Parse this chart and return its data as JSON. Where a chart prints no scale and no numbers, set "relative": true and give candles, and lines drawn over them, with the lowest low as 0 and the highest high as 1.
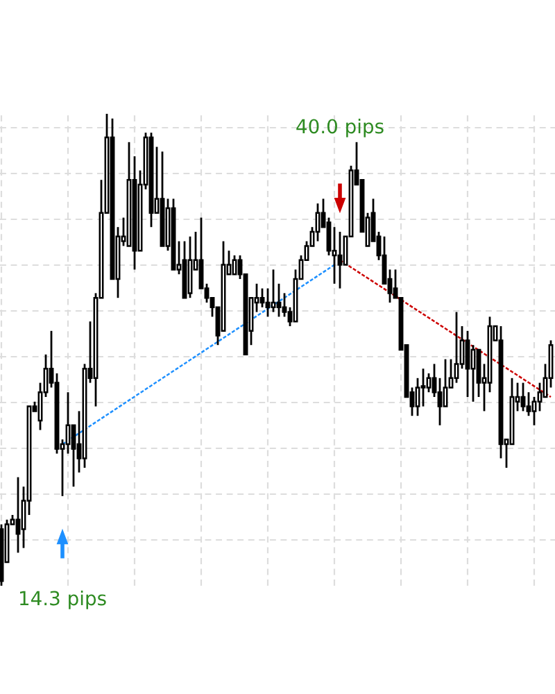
{
  "chart_data": {
    "type": "candlestick",
    "relative": true,
    "grid": true,
    "categories": [
      null,
      null,
      null,
      null,
      null,
      null,
      null,
      null,
      null,
      null,
      null,
      null,
      null,
      null,
      null,
      null,
      null,
      null,
      null,
      null,
      null,
      null,
      null,
      null,
      null,
      null,
      null,
      null,
      null,
      null,
      null,
      null,
      null,
      null,
      null,
      null,
      null,
      null,
      null,
      null,
      null,
      null,
      null,
      null,
      null,
      null,
      null,
      null,
      null,
      null,
      null,
      null,
      null,
      null,
      null,
      null,
      null,
      null,
      null,
      null,
      null,
      null,
      null,
      null,
      null,
      null,
      null,
      null,
      null,
      null,
      null,
      null,
      null,
      null,
      null,
      null,
      null,
      null,
      null,
      null,
      null,
      null,
      null,
      null,
      null,
      null,
      null,
      null,
      null,
      null,
      null,
      null,
      null,
      null,
      null,
      null,
      null,
      null,
      null,
      null
    ],
    "ohlc": [
      [
        0.12,
        0.13,
        0,
        0.01
      ],
      [
        0.05,
        0.14,
        0.05,
        0.13
      ],
      [
        0.13,
        0.15,
        0.13,
        0.14
      ],
      [
        0.14,
        0.23,
        0.07,
        0.11
      ],
      [
        0.12,
        0.21,
        0.08,
        0.18
      ],
      [
        0.18,
        0.38,
        0.15,
        0.38
      ],
      [
        0.38,
        0.39,
        0.37,
        0.37
      ],
      [
        0.35,
        0.43,
        0.33,
        0.41
      ],
      [
        0.41,
        0.49,
        0.4,
        0.46
      ],
      [
        0.46,
        0.54,
        0.42,
        0.43
      ],
      [
        0.43,
        0.45,
        0.28,
        0.29
      ],
      [
        0.29,
        0.31,
        0.19,
        0.3
      ],
      [
        0.3,
        0.41,
        0.28,
        0.34
      ],
      [
        0.34,
        0.34,
        0.21,
        0.29
      ],
      [
        0.3,
        0.37,
        0.24,
        0.27
      ],
      [
        0.27,
        0.47,
        0.25,
        0.46
      ],
      [
        0.46,
        0.56,
        0.43,
        0.44
      ],
      [
        0.44,
        0.62,
        0.38,
        0.61
      ],
      [
        0.61,
        0.86,
        0.61,
        0.79
      ],
      [
        0.79,
        1.0,
        0.79,
        0.95
      ],
      [
        0.95,
        0.99,
        0.65,
        0.65
      ],
      [
        0.65,
        0.76,
        0.61,
        0.74
      ],
      [
        0.73,
        0.78,
        0.72,
        0.74
      ],
      [
        0.72,
        0.94,
        0.72,
        0.86
      ],
      [
        0.86,
        0.91,
        0.67,
        0.71
      ],
      [
        0.71,
        0.88,
        0.71,
        0.85
      ],
      [
        0.85,
        0.96,
        0.84,
        0.95
      ],
      [
        0.95,
        0.96,
        0.76,
        0.79
      ],
      [
        0.79,
        0.93,
        0.79,
        0.82
      ],
      [
        0.82,
        0.92,
        0.72,
        0.72
      ],
      [
        0.72,
        0.82,
        0.71,
        0.8
      ],
      [
        0.8,
        0.82,
        0.67,
        0.67
      ],
      [
        0.67,
        0.73,
        0.66,
        0.68
      ],
      [
        0.69,
        0.73,
        0.61,
        0.61
      ],
      [
        0.62,
        0.74,
        0.61,
        0.69
      ],
      [
        0.67,
        0.75,
        0.67,
        0.69
      ],
      [
        0.69,
        0.78,
        0.63,
        0.63
      ],
      [
        0.63,
        0.64,
        0.6,
        0.61
      ],
      [
        0.61,
        0.61,
        0.57,
        0.59
      ],
      [
        0.59,
        0.59,
        0.51,
        0.53
      ],
      [
        0.54,
        0.73,
        0.54,
        0.68
      ],
      [
        0.66,
        0.71,
        0.66,
        0.68
      ],
      [
        0.66,
        0.7,
        0.66,
        0.69
      ],
      [
        0.69,
        0.7,
        0.65,
        0.66
      ],
      [
        0.66,
        0.66,
        0.49,
        0.49
      ],
      [
        0.54,
        0.61,
        0.51,
        0.61
      ],
      [
        0.6,
        0.64,
        0.58,
        0.61
      ],
      [
        0.61,
        0.63,
        0.59,
        0.6
      ],
      [
        0.6,
        0.63,
        0.57,
        0.59
      ],
      [
        0.59,
        0.67,
        0.58,
        0.6
      ],
      [
        0.6,
        0.64,
        0.57,
        0.59
      ],
      [
        0.59,
        0.62,
        0.57,
        0.58
      ],
      [
        0.58,
        0.59,
        0.55,
        0.56
      ],
      [
        0.56,
        0.67,
        0.56,
        0.65
      ],
      [
        0.65,
        0.7,
        0.65,
        0.69
      ],
      [
        0.69,
        0.73,
        0.69,
        0.72
      ],
      [
        0.72,
        0.76,
        0.72,
        0.75
      ],
      [
        0.75,
        0.81,
        0.73,
        0.79
      ],
      [
        0.79,
        0.82,
        0.76,
        0.76
      ],
      [
        0.77,
        0.78,
        0.7,
        0.71
      ],
      [
        0.7,
        0.76,
        0.64,
        0.71
      ],
      [
        0.7,
        0.75,
        0.63,
        0.68
      ],
      [
        0.68,
        0.74,
        0.68,
        0.74
      ],
      [
        0.74,
        0.89,
        0.74,
        0.88
      ],
      [
        0.88,
        0.94,
        0.85,
        0.85
      ],
      [
        0.86,
        0.86,
        0.75,
        0.75
      ],
      [
        0.72,
        0.79,
        0.72,
        0.78
      ],
      [
        0.79,
        0.82,
        0.73,
        0.73
      ],
      [
        0.74,
        0.75,
        0.69,
        0.7
      ],
      [
        0.7,
        0.74,
        0.64,
        0.64
      ],
      [
        0.65,
        0.67,
        0.6,
        0.62
      ],
      [
        0.63,
        0.67,
        0.61,
        0.61
      ],
      [
        0.61,
        0.61,
        0.5,
        0.5
      ],
      [
        0.51,
        0.51,
        0.4,
        0.4
      ],
      [
        0.41,
        0.42,
        0.36,
        0.38
      ],
      [
        0.38,
        0.44,
        0.36,
        0.42
      ],
      [
        0.42,
        0.46,
        0.38,
        0.42
      ],
      [
        0.42,
        0.45,
        0.41,
        0.44
      ],
      [
        0.44,
        0.47,
        0.4,
        0.41
      ],
      [
        0.41,
        0.44,
        0.34,
        0.38
      ],
      [
        0.38,
        0.48,
        0.38,
        0.42
      ],
      [
        0.42,
        0.48,
        0.42,
        0.44
      ],
      [
        0.44,
        0.58,
        0.43,
        0.47
      ],
      [
        0.47,
        0.55,
        0.46,
        0.52
      ],
      [
        0.52,
        0.54,
        0.4,
        0.46
      ],
      [
        0.46,
        0.51,
        0.39,
        0.5
      ],
      [
        0.5,
        0.5,
        0.4,
        0.43
      ],
      [
        0.43,
        0.47,
        0.37,
        0.44
      ],
      [
        0.43,
        0.57,
        0.41,
        0.55
      ],
      [
        0.52,
        0.55,
        0.52,
        0.55
      ],
      [
        0.52,
        0.55,
        0.27,
        0.3
      ],
      [
        0.3,
        0.31,
        0.25,
        0.31
      ],
      [
        0.3,
        0.44,
        0.3,
        0.4
      ],
      [
        0.39,
        0.43,
        0.37,
        0.4
      ],
      [
        0.4,
        0.43,
        0.37,
        0.38
      ],
      [
        0.38,
        0.41,
        0.36,
        0.37
      ],
      [
        0.37,
        0.4,
        0.34,
        0.39
      ],
      [
        0.39,
        0.43,
        0.37,
        0.41
      ],
      [
        0.4,
        0.47,
        0.4,
        0.44
      ],
      [
        0.44,
        0.52,
        0.42,
        0.51
      ]
    ],
    "series": [
      {
        "type": "line",
        "color": "#1e90ff",
        "line_style": "dashed",
        "values": [
          null,
          null,
          null,
          null,
          null,
          null,
          null,
          null,
          null,
          null,
          null,
          0.3,
          null,
          null,
          null,
          null,
          null,
          null,
          null,
          null,
          null,
          null,
          null,
          null,
          null,
          null,
          null,
          null,
          null,
          null,
          null,
          null,
          null,
          null,
          null,
          null,
          null,
          null,
          null,
          null,
          null,
          null,
          null,
          null,
          null,
          null,
          null,
          null,
          null,
          null,
          null,
          null,
          null,
          null,
          null,
          null,
          null,
          null,
          null,
          null,
          0.68,
          null,
          null,
          null,
          null,
          null,
          null,
          null,
          null,
          null,
          null,
          null,
          null,
          null,
          null,
          null,
          null,
          null,
          null,
          null,
          null,
          null,
          null,
          null,
          null,
          null,
          null,
          null,
          null,
          null,
          null,
          null,
          null,
          null,
          null,
          null,
          null,
          null,
          null,
          null
        ]
      },
      {
        "type": "line",
        "color": "#cc0000",
        "line_style": "dashed",
        "values": [
          null,
          null,
          null,
          null,
          null,
          null,
          null,
          null,
          null,
          null,
          null,
          null,
          null,
          null,
          null,
          null,
          null,
          null,
          null,
          null,
          null,
          null,
          null,
          null,
          null,
          null,
          null,
          null,
          null,
          null,
          null,
          null,
          null,
          null,
          null,
          null,
          null,
          null,
          null,
          null,
          null,
          null,
          null,
          null,
          null,
          null,
          null,
          null,
          null,
          null,
          null,
          null,
          null,
          null,
          null,
          null,
          null,
          null,
          null,
          null,
          null,
          0.69,
          null,
          null,
          null,
          null,
          null,
          null,
          null,
          null,
          null,
          null,
          null,
          null,
          null,
          null,
          null,
          null,
          null,
          null,
          null,
          null,
          null,
          null,
          null,
          null,
          null,
          null,
          null,
          null,
          null,
          null,
          null,
          null,
          null,
          null,
          null,
          null,
          null,
          0.4
        ]
      }
    ],
    "annotations": [
      "14.3 pips",
      "40.0 pips"
    ]
  }
}
